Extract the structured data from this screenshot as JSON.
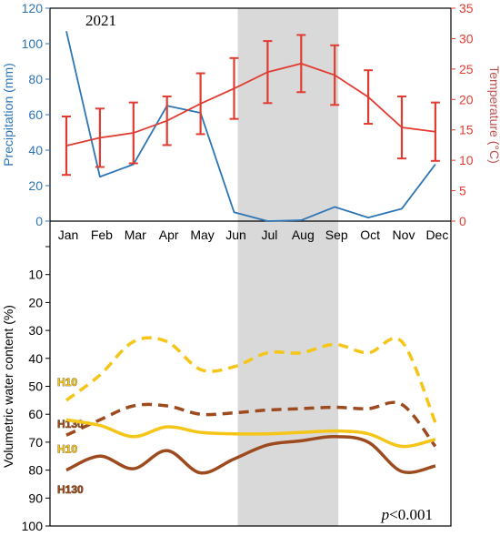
{
  "chart_data": [
    {
      "type": "line",
      "title": "2021",
      "categories": [
        "Jan",
        "Feb",
        "Mar",
        "Apr",
        "May",
        "Jun",
        "Jul",
        "Aug",
        "Sep",
        "Oct",
        "Nov",
        "Dec"
      ],
      "shaded_months": [
        "Jun",
        "Sep"
      ],
      "y_left": {
        "label": "Precipitation (mm)",
        "ylim": [
          0,
          120
        ],
        "ticks": [
          "0",
          "20",
          "40",
          "60",
          "80",
          "100",
          "120"
        ],
        "color": "#2e75b6"
      },
      "y_right": {
        "label": "Temperature (°C)",
        "ylim": [
          0,
          35
        ],
        "ticks": [
          "0",
          "5",
          "10",
          "15",
          "20",
          "25",
          "30",
          "35"
        ],
        "color": "#e03c31"
      },
      "series": [
        {
          "axis": "left",
          "color": "#2e75b6",
          "values": [
            107,
            25,
            32,
            65,
            61,
            5,
            0,
            0.5,
            8,
            2,
            7,
            32
          ]
        },
        {
          "axis": "right",
          "color": "#e03c31",
          "values": [
            12.4,
            13.7,
            14.5,
            16.5,
            19.3,
            21.8,
            24.5,
            25.9,
            24.0,
            20.4,
            15.4,
            14.7
          ],
          "error": [
            4.8,
            4.8,
            5.0,
            4.0,
            5.0,
            5.0,
            5.1,
            4.7,
            4.9,
            4.4,
            5.1,
            4.8
          ]
        }
      ]
    },
    {
      "type": "line",
      "categories": [
        "Jan",
        "Feb",
        "Mar",
        "Apr",
        "May",
        "Jun",
        "Jul",
        "Aug",
        "Sep",
        "Oct",
        "Nov",
        "Dec"
      ],
      "ylabel": "Volumetric water content (%)",
      "ylim": [
        0,
        100
      ],
      "y_inverted": true,
      "yticks": [
        "0",
        "10",
        "20",
        "30",
        "40",
        "50",
        "60",
        "70",
        "80",
        "90",
        "100"
      ],
      "annotation": "p<0.001",
      "annotation_p": "p",
      "annotation_rest": "<0.001",
      "series": [
        {
          "name": "H10",
          "label_y": 48.5,
          "color": "#f5c518",
          "dash": true,
          "values": [
            55,
            46,
            34,
            34,
            44,
            43,
            38,
            38,
            35,
            38,
            34,
            63
          ]
        },
        {
          "name": "H130",
          "label_y": 63.5,
          "color": "#9c4a1e",
          "dash": true,
          "values": [
            67.5,
            62,
            57,
            57,
            60,
            59.5,
            58.5,
            58,
            57.5,
            58,
            56.5,
            71.5
          ]
        },
        {
          "name": "H10",
          "label_y": 72.5,
          "color": "#f5c518",
          "dash": false,
          "values": [
            62,
            64,
            68,
            64.5,
            66.5,
            67,
            67,
            66.5,
            66,
            67,
            71.5,
            69
          ]
        },
        {
          "name": "H130",
          "label_y": 87,
          "color": "#9c4a1e",
          "dash": false,
          "values": [
            80,
            75,
            79.5,
            73,
            81,
            76,
            71,
            69.5,
            68,
            70,
            80.5,
            78.5
          ]
        }
      ]
    }
  ]
}
